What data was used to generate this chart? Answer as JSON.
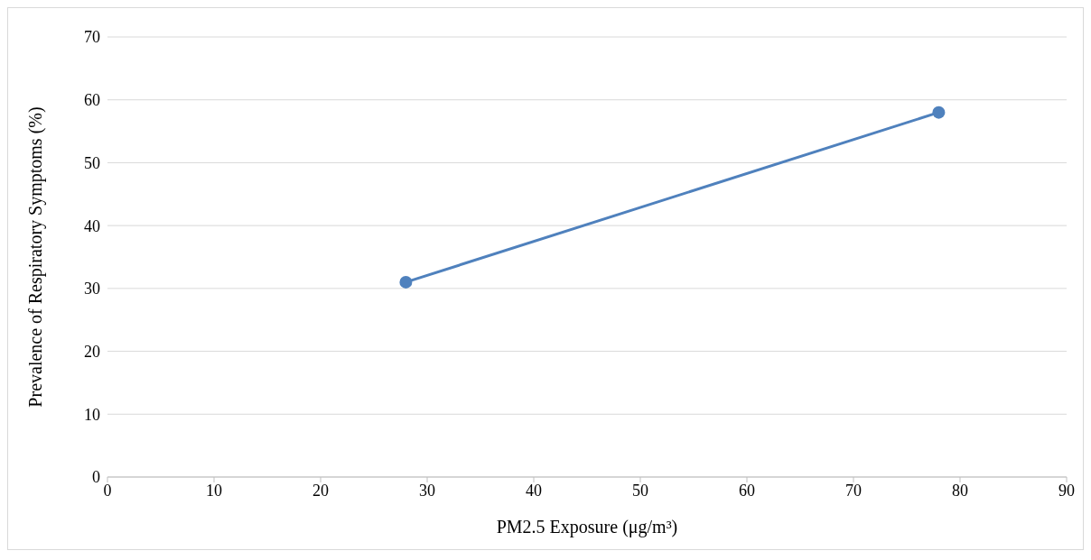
{
  "chart_data": {
    "type": "line",
    "xlabel": "PM2.5 Exposure (μg/m³)",
    "ylabel": "Prevalence of Respiratory Symptoms (%)",
    "x": [
      28,
      78
    ],
    "series": [
      {
        "color": "#4f81bd",
        "values": [
          31,
          58
        ]
      }
    ],
    "xlim": [
      0,
      90
    ],
    "xticks": [
      0,
      10,
      20,
      30,
      40,
      50,
      60,
      70,
      80,
      90
    ],
    "ylim": [
      0,
      70
    ],
    "yticks": [
      0,
      10,
      20,
      30,
      40,
      50,
      60,
      70
    ],
    "grid": "y",
    "marker": "circle",
    "line_style": "solid",
    "legend": false
  }
}
